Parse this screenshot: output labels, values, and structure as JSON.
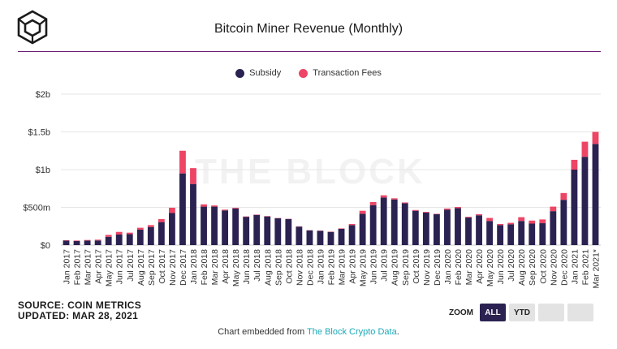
{
  "header": {
    "title": "Bitcoin Miner Revenue (Monthly)"
  },
  "colors": {
    "subsidy": "#2b2251",
    "fees": "#ee4465",
    "brand": "#6b1e72",
    "zoom_active": "#2b2251"
  },
  "icons": {
    "logo": "the-block-cube-logo"
  },
  "watermark": "THE BLOCK",
  "legend": {
    "subsidy": "Subsidy",
    "fees": "Transaction Fees"
  },
  "source": {
    "line1": "SOURCE: COIN METRICS",
    "line2": "UPDATED: MAR 28, 2021"
  },
  "zoom": {
    "label": "ZOOM",
    "buttons": [
      "ALL",
      "YTD",
      "",
      ""
    ],
    "active": "ALL"
  },
  "footer": {
    "prefix": "Chart embedded from ",
    "link": "The Block Crypto Data",
    "suffix": "."
  },
  "chart_data": {
    "type": "bar",
    "stacked": true,
    "title": "Bitcoin Miner Revenue (Monthly)",
    "ylim": [
      0,
      2000000000
    ],
    "yticks": [
      {
        "value": 0,
        "label": "$0"
      },
      {
        "value": 500000000,
        "label": "$500m"
      },
      {
        "value": 1000000000,
        "label": "$1b"
      },
      {
        "value": 1500000000,
        "label": "$1.5b"
      },
      {
        "value": 2000000000,
        "label": "$2b"
      }
    ],
    "grid": true,
    "legend_position": "top-center",
    "categories": [
      "Jan 2017",
      "Feb 2017",
      "Mar 2017",
      "Apr 2017",
      "May 2017",
      "Jun 2017",
      "Jul 2017",
      "Aug 2017",
      "Sep 2017",
      "Oct 2017",
      "Nov 2017",
      "Dec 2017",
      "Jan 2018",
      "Feb 2018",
      "Mar 2018",
      "Apr 2018",
      "May 2018",
      "Jun 2018",
      "Jul 2018",
      "Aug 2018",
      "Sep 2018",
      "Oct 2018",
      "Nov 2018",
      "Dec 2018",
      "Jan 2019",
      "Feb 2019",
      "Mar 2019",
      "Apr 2019",
      "May 2019",
      "Jun 2019",
      "Jul 2019",
      "Aug 2019",
      "Sep 2019",
      "Oct 2019",
      "Nov 2019",
      "Dec 2019",
      "Jan 2020",
      "Feb 2020",
      "Mar 2020",
      "Apr 2020",
      "May 2020",
      "Jun 2020",
      "Jul 2020",
      "Aug 2020",
      "Sep 2020",
      "Oct 2020",
      "Nov 2020",
      "Dec 2020",
      "Jan 2021",
      "Feb 2021",
      "Mar 2021*"
    ],
    "series": [
      {
        "name": "Subsidy",
        "values": [
          60000000,
          55000000,
          60000000,
          62000000,
          110000000,
          140000000,
          145000000,
          205000000,
          240000000,
          305000000,
          425000000,
          950000000,
          810000000,
          510000000,
          510000000,
          460000000,
          485000000,
          375000000,
          400000000,
          380000000,
          355000000,
          345000000,
          245000000,
          195000000,
          190000000,
          175000000,
          215000000,
          265000000,
          415000000,
          530000000,
          630000000,
          605000000,
          555000000,
          455000000,
          430000000,
          410000000,
          470000000,
          490000000,
          365000000,
          395000000,
          320000000,
          265000000,
          275000000,
          320000000,
          285000000,
          290000000,
          450000000,
          600000000,
          1000000000,
          1170000000,
          1340000000
        ]
      },
      {
        "name": "Transaction Fees",
        "values": [
          5000000,
          6000000,
          8000000,
          10000000,
          25000000,
          35000000,
          20000000,
          25000000,
          25000000,
          40000000,
          70000000,
          300000000,
          210000000,
          30000000,
          15000000,
          10000000,
          10000000,
          5000000,
          5000000,
          5000000,
          4000000,
          4000000,
          4000000,
          3000000,
          3000000,
          4000000,
          6000000,
          15000000,
          40000000,
          40000000,
          30000000,
          15000000,
          10000000,
          10000000,
          10000000,
          5000000,
          15000000,
          15000000,
          10000000,
          15000000,
          40000000,
          15000000,
          20000000,
          50000000,
          40000000,
          50000000,
          60000000,
          90000000,
          130000000,
          200000000,
          160000000
        ]
      }
    ]
  }
}
